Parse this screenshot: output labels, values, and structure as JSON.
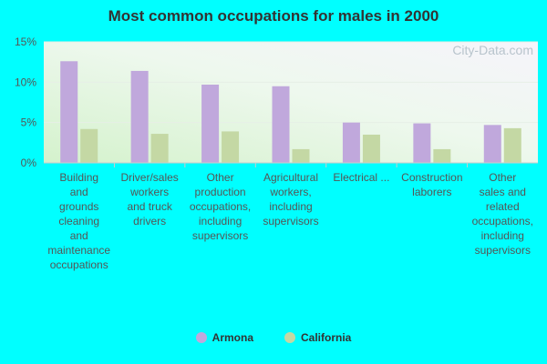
{
  "chart_data": {
    "type": "bar",
    "title": "Most common occupations for males in 2000",
    "categories": [
      [
        "Building",
        "and",
        "grounds",
        "cleaning",
        "and",
        "maintenance",
        "occupations"
      ],
      [
        "Driver/sales",
        "workers",
        "and truck",
        "drivers"
      ],
      [
        "Other",
        "production",
        "occupations,",
        "including",
        "supervisors"
      ],
      [
        "Agricultural",
        "workers,",
        "including",
        "supervisors"
      ],
      [
        "Electrical ..."
      ],
      [
        "Construction",
        "laborers"
      ],
      [
        "Other",
        "sales and",
        "related",
        "occupations,",
        "including",
        "supervisors"
      ]
    ],
    "series": [
      {
        "name": "Armona",
        "color": "#c0a8dc",
        "values": [
          12.6,
          11.4,
          9.7,
          9.5,
          5.0,
          4.9,
          4.7
        ]
      },
      {
        "name": "California",
        "color": "#c4d8a4",
        "values": [
          4.2,
          3.6,
          3.9,
          1.7,
          3.5,
          1.7,
          4.3
        ]
      }
    ],
    "yticks": [
      "0%",
      "5%",
      "10%",
      "15%"
    ],
    "ylim": [
      0,
      15
    ],
    "xlabel": "",
    "ylabel": "",
    "grid": true,
    "legend_position": "bottom-center"
  },
  "watermark": "City-Data.com"
}
